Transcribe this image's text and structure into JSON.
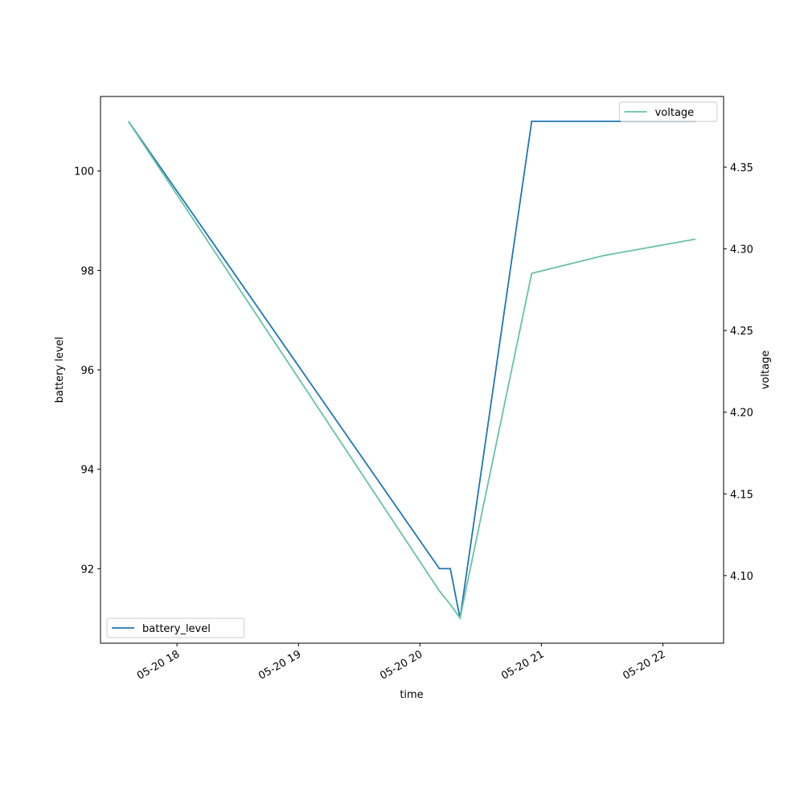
{
  "chart_data": {
    "type": "line",
    "xlabel": "time",
    "ylabel": "battery level",
    "y2label": "voltage",
    "x": [
      17.6,
      20.16,
      20.25,
      20.33,
      20.92,
      21.52,
      22.27
    ],
    "xlim": [
      17.37,
      22.5
    ],
    "xticks": [
      {
        "value": 18,
        "label": "05-20 18"
      },
      {
        "value": 19,
        "label": "05-20 19"
      },
      {
        "value": 20,
        "label": "05-20 20"
      },
      {
        "value": 21,
        "label": "05-20 21"
      },
      {
        "value": 22,
        "label": "05-20 22"
      }
    ],
    "ylim": [
      90.5,
      101.5
    ],
    "yticks": [
      92,
      94,
      96,
      98,
      100
    ],
    "y2lim": [
      4.0586,
      4.3933
    ],
    "y2ticks": [
      {
        "value": 4.1,
        "label": "4.10"
      },
      4.15,
      {
        "value": 4.2,
        "label": "4.20"
      },
      4.25,
      {
        "value": 4.3,
        "label": "4.30"
      },
      4.35
    ],
    "series": [
      {
        "name": "battery_level",
        "color": "#1f77b4",
        "legend": "lower left",
        "values": [
          101,
          92,
          92,
          91,
          101,
          101,
          101
        ]
      },
      {
        "name": "voltage",
        "color": "#66c2a5",
        "axis": "y2",
        "legend": "upper right",
        "values": [
          4.378,
          4.0906,
          4.0823,
          4.074,
          4.285,
          4.296,
          4.306
        ]
      }
    ]
  }
}
